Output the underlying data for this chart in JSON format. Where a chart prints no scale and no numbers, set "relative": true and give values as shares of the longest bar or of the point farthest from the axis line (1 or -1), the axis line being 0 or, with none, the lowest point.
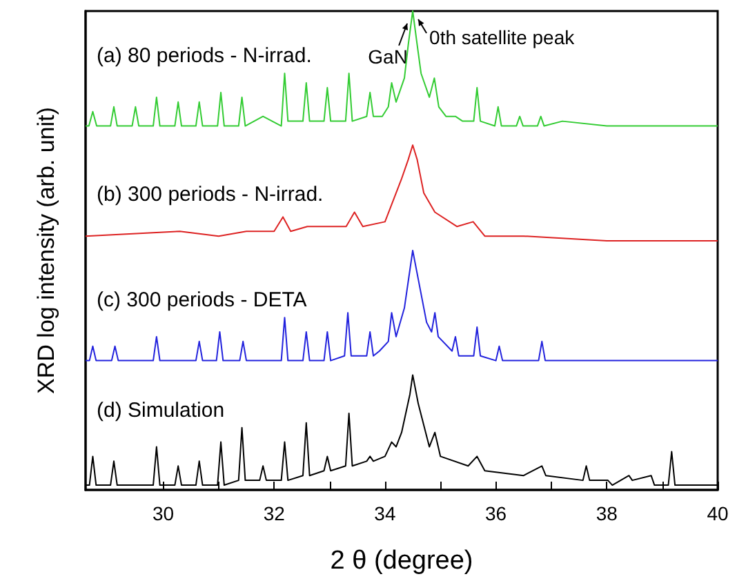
{
  "chart_data": {
    "type": "line",
    "xlabel": "2 θ (degree)",
    "ylabel": "XRD log intensity (arb. unit)",
    "relative": true,
    "xlim": [
      28.6,
      40
    ],
    "xticks": [
      30,
      {
        "value": 31,
        "label": null
      },
      32,
      {
        "value": 33,
        "label": null
      },
      34,
      {
        "value": 35,
        "label": null
      },
      36,
      {
        "value": 37,
        "label": null
      },
      38,
      {
        "value": 39,
        "label": null
      },
      40
    ],
    "tick_labels": "x",
    "grid": false,
    "legend": false,
    "series": [
      {
        "name": "(a) 80 periods - N-irrad.",
        "color": "#33cc33",
        "x": [
          28.6,
          28.66,
          28.73,
          28.8,
          29.05,
          29.11,
          29.17,
          29.44,
          29.5,
          29.56,
          29.82,
          29.88,
          29.94,
          30.21,
          30.27,
          30.33,
          30.59,
          30.65,
          30.71,
          30.98,
          31.04,
          31.1,
          31.36,
          31.42,
          31.48,
          31.8,
          32.13,
          32.19,
          32.25,
          32.52,
          32.58,
          32.64,
          32.9,
          32.96,
          33.02,
          33.29,
          33.35,
          33.41,
          33.67,
          33.73,
          33.79,
          33.95,
          34.06,
          34.12,
          34.2,
          34.35,
          34.42,
          34.5,
          34.58,
          34.65,
          34.8,
          34.89,
          34.97,
          35.1,
          35.27,
          35.4,
          35.6,
          35.66,
          35.72,
          35.98,
          36.04,
          36.1,
          36.37,
          36.43,
          36.49,
          36.75,
          36.81,
          36.87,
          37.2,
          38,
          39,
          40
        ],
        "values": [
          0.76,
          0.76,
          0.79,
          0.76,
          0.76,
          0.8,
          0.76,
          0.76,
          0.8,
          0.76,
          0.76,
          0.82,
          0.76,
          0.76,
          0.81,
          0.76,
          0.76,
          0.81,
          0.76,
          0.76,
          0.83,
          0.76,
          0.76,
          0.82,
          0.76,
          0.78,
          0.76,
          0.87,
          0.77,
          0.77,
          0.85,
          0.77,
          0.77,
          0.84,
          0.77,
          0.77,
          0.87,
          0.77,
          0.78,
          0.83,
          0.78,
          0.78,
          0.8,
          0.85,
          0.81,
          0.86,
          0.93,
          1.0,
          0.93,
          0.87,
          0.82,
          0.86,
          0.8,
          0.78,
          0.78,
          0.77,
          0.77,
          0.84,
          0.77,
          0.76,
          0.8,
          0.76,
          0.76,
          0.78,
          0.76,
          0.76,
          0.78,
          0.76,
          0.77,
          0.76,
          0.76,
          0.76
        ]
      },
      {
        "name": "(b) 300 periods - N-irrad.",
        "color": "#dd2222",
        "x": [
          28.6,
          30.3,
          31.0,
          31.5,
          32.0,
          32.16,
          32.3,
          32.6,
          33.0,
          33.3,
          33.45,
          33.6,
          34.0,
          34.3,
          34.42,
          34.5,
          34.58,
          34.7,
          34.9,
          35.3,
          35.59,
          35.8,
          36.5,
          38,
          40
        ],
        "values": [
          0.53,
          0.54,
          0.53,
          0.54,
          0.54,
          0.57,
          0.54,
          0.55,
          0.55,
          0.55,
          0.58,
          0.55,
          0.56,
          0.65,
          0.69,
          0.72,
          0.69,
          0.62,
          0.58,
          0.55,
          0.56,
          0.53,
          0.53,
          0.52,
          0.52
        ]
      },
      {
        "name": "(c) 300 periods - DETA",
        "color": "#2222dd",
        "x": [
          28.6,
          28.67,
          28.73,
          28.79,
          29.07,
          29.13,
          29.19,
          29.82,
          29.88,
          29.94,
          30.59,
          30.65,
          30.71,
          30.96,
          31.02,
          31.08,
          31.38,
          31.44,
          31.5,
          32.13,
          32.19,
          32.25,
          32.52,
          32.58,
          32.64,
          32.9,
          32.96,
          33.02,
          33.27,
          33.33,
          33.39,
          33.67,
          33.73,
          33.79,
          33.9,
          34.06,
          34.12,
          34.2,
          34.35,
          34.45,
          34.5,
          34.6,
          34.75,
          34.84,
          34.9,
          34.96,
          35.21,
          35.27,
          35.33,
          35.6,
          35.66,
          35.72,
          36.0,
          36.06,
          36.12,
          36.77,
          36.83,
          36.89,
          38,
          40
        ],
        "values": [
          0.27,
          0.27,
          0.3,
          0.27,
          0.27,
          0.3,
          0.27,
          0.27,
          0.32,
          0.27,
          0.27,
          0.31,
          0.27,
          0.27,
          0.33,
          0.27,
          0.27,
          0.31,
          0.27,
          0.27,
          0.36,
          0.27,
          0.27,
          0.33,
          0.27,
          0.27,
          0.33,
          0.27,
          0.28,
          0.37,
          0.28,
          0.28,
          0.33,
          0.28,
          0.29,
          0.31,
          0.37,
          0.32,
          0.38,
          0.46,
          0.5,
          0.44,
          0.35,
          0.33,
          0.37,
          0.32,
          0.29,
          0.32,
          0.28,
          0.28,
          0.34,
          0.28,
          0.27,
          0.3,
          0.27,
          0.27,
          0.31,
          0.27,
          0.27,
          0.27
        ]
      },
      {
        "name": "(d) Simulation",
        "color": "#000000",
        "x": [
          28.6,
          28.67,
          28.73,
          28.79,
          29.05,
          29.11,
          29.17,
          29.82,
          29.88,
          29.94,
          30.21,
          30.27,
          30.33,
          30.59,
          30.65,
          30.71,
          30.98,
          31.04,
          31.1,
          31.36,
          31.42,
          31.48,
          31.74,
          31.8,
          31.86,
          32.13,
          32.19,
          32.25,
          32.52,
          32.58,
          32.64,
          32.9,
          32.96,
          33.02,
          33.29,
          33.35,
          33.41,
          33.67,
          33.73,
          33.79,
          34.0,
          34.12,
          34.2,
          34.3,
          34.45,
          34.5,
          34.6,
          34.8,
          34.9,
          35.0,
          35.5,
          35.66,
          35.8,
          36.5,
          36.83,
          36.9,
          37.57,
          37.63,
          37.69,
          38.02,
          38.1,
          38.4,
          38.46,
          38.8,
          38.86,
          39.11,
          39.17,
          39.23,
          40
        ],
        "values": [
          0.01,
          0.01,
          0.07,
          0.01,
          0.01,
          0.06,
          0.01,
          0.01,
          0.09,
          0.01,
          0.01,
          0.05,
          0.01,
          0.01,
          0.06,
          0.01,
          0.01,
          0.1,
          0.01,
          0.02,
          0.13,
          0.02,
          0.02,
          0.05,
          0.02,
          0.02,
          0.1,
          0.02,
          0.03,
          0.14,
          0.03,
          0.04,
          0.07,
          0.04,
          0.05,
          0.16,
          0.05,
          0.06,
          0.07,
          0.06,
          0.07,
          0.1,
          0.09,
          0.12,
          0.2,
          0.24,
          0.18,
          0.09,
          0.12,
          0.07,
          0.05,
          0.07,
          0.04,
          0.03,
          0.05,
          0.03,
          0.02,
          0.05,
          0.02,
          0.02,
          0.01,
          0.03,
          0.02,
          0.03,
          0.01,
          0.01,
          0.08,
          0.01,
          0.01
        ]
      }
    ],
    "annotations": [
      {
        "text": "GaN",
        "x": 34.5,
        "y": 1.0
      },
      {
        "text": "0th satellite peak",
        "x": 34.5,
        "y": 1.0
      }
    ]
  }
}
